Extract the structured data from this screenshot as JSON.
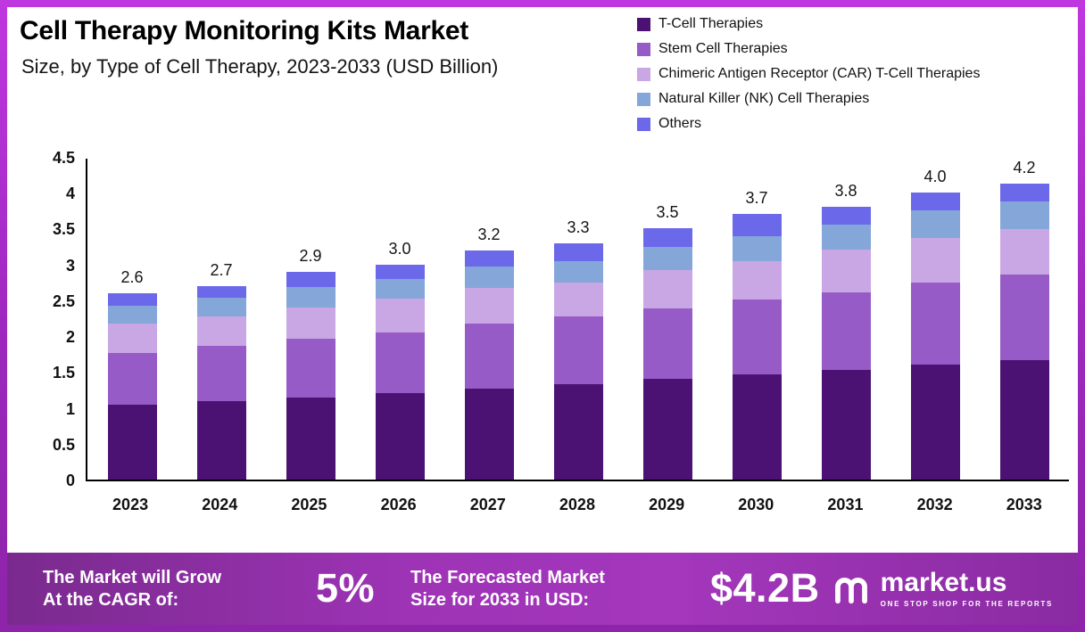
{
  "chart_data": {
    "type": "bar",
    "stacked": true,
    "title": "Cell Therapy Monitoring Kits Market",
    "subtitle": "Size, by Type of Cell Therapy, 2023-2033 (USD Billion)",
    "unit": "USD Billion",
    "grid": false,
    "legend_position": "top-right",
    "categories": [
      "2023",
      "2024",
      "2025",
      "2026",
      "2027",
      "2028",
      "2029",
      "2030",
      "2031",
      "2032",
      "2033"
    ],
    "series": [
      {
        "name": "T-Cell Therapies",
        "color": "#4b1273",
        "values": [
          1.04,
          1.1,
          1.14,
          1.2,
          1.27,
          1.33,
          1.41,
          1.47,
          1.53,
          1.61,
          1.7
        ]
      },
      {
        "name": "Stem Cell Therapies",
        "color": "#965bc6",
        "values": [
          0.73,
          0.77,
          0.82,
          0.85,
          0.9,
          0.95,
          0.98,
          1.04,
          1.08,
          1.14,
          1.21
        ]
      },
      {
        "name": "Chimeric Antigen Receptor (CAR) T-Cell Therapies",
        "color": "#c9a7e4",
        "values": [
          0.4,
          0.41,
          0.44,
          0.47,
          0.5,
          0.47,
          0.53,
          0.53,
          0.6,
          0.62,
          0.64
        ]
      },
      {
        "name": "Natural Killer (NK) Cell Therapies",
        "color": "#84a6d8",
        "values": [
          0.25,
          0.26,
          0.28,
          0.28,
          0.3,
          0.3,
          0.33,
          0.36,
          0.34,
          0.38,
          0.4
        ]
      },
      {
        "name": "Others",
        "color": "#6b68ea",
        "values": [
          0.18,
          0.16,
          0.22,
          0.2,
          0.23,
          0.25,
          0.25,
          0.3,
          0.25,
          0.25,
          0.25
        ]
      }
    ],
    "totals": [
      2.6,
      2.7,
      2.9,
      3.0,
      3.2,
      3.3,
      3.5,
      3.7,
      3.8,
      4.0,
      4.2
    ],
    "total_labels": [
      "2.6",
      "2.7",
      "2.9",
      "3.0",
      "3.2",
      "3.3",
      "3.5",
      "3.7",
      "3.8",
      "4.0",
      "4.2"
    ],
    "ylim": [
      0,
      4.5
    ],
    "yticks": [
      0,
      0.5,
      1,
      1.5,
      2,
      2.5,
      3,
      3.5,
      4,
      4.5
    ],
    "ytick_labels": [
      "0",
      "0.5",
      "1",
      "1.5",
      "2",
      "2.5",
      "3",
      "3.5",
      "4",
      "4.5"
    ]
  },
  "footer": {
    "cagr_label": "The Market will Grow\nAt the CAGR of:",
    "cagr_value": "5%",
    "forecast_label": "The Forecasted Market\nSize for 2033 in USD:",
    "forecast_value": "$4.2B",
    "brand_name": "market.us",
    "brand_tagline": "ONE STOP SHOP FOR THE REPORTS"
  },
  "colors": {
    "frame_border": "#a32cc4",
    "banner_purple": "#9e33b6",
    "axis": "#000000",
    "text": "#111111"
  }
}
